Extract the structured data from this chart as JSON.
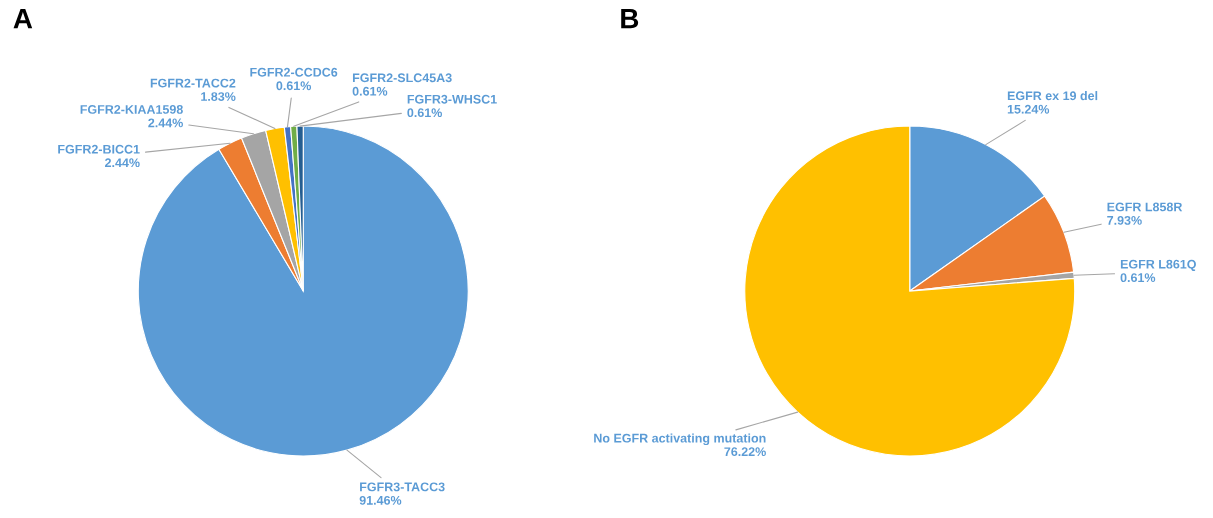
{
  "chart_data": [
    {
      "type": "pie",
      "title": "A",
      "categories": [
        "FGFR3-TACC3",
        "FGFR2-BICC1",
        "FGFR2-KIAA1598",
        "FGFR2-TACC2",
        "FGFR2-CCDC6",
        "FGFR2-SLC45A3",
        "FGFR3-WHSC1"
      ],
      "values": [
        91.46,
        2.44,
        2.44,
        1.83,
        0.61,
        0.61,
        0.61
      ],
      "value_labels": [
        "91.46%",
        "2.44%",
        "2.44%",
        "1.83%",
        "0.61%",
        "0.61%",
        "0.61%"
      ],
      "colors": [
        "#5b9bd5",
        "#ed7d31",
        "#a5a5a5",
        "#ffc000",
        "#4472c4",
        "#70ad47",
        "#255e91"
      ]
    },
    {
      "type": "pie",
      "title": "B",
      "categories": [
        "EGFR ex 19 del",
        "EGFR L858R",
        "EGFR L861Q",
        "No EGFR activating mutation"
      ],
      "values": [
        15.24,
        7.93,
        0.61,
        76.22
      ],
      "value_labels": [
        "15.24%",
        "7.93%",
        "0.61%",
        "76.22%"
      ],
      "colors": [
        "#5b9bd5",
        "#ed7d31",
        "#a5a5a5",
        "#ffc000"
      ]
    }
  ]
}
